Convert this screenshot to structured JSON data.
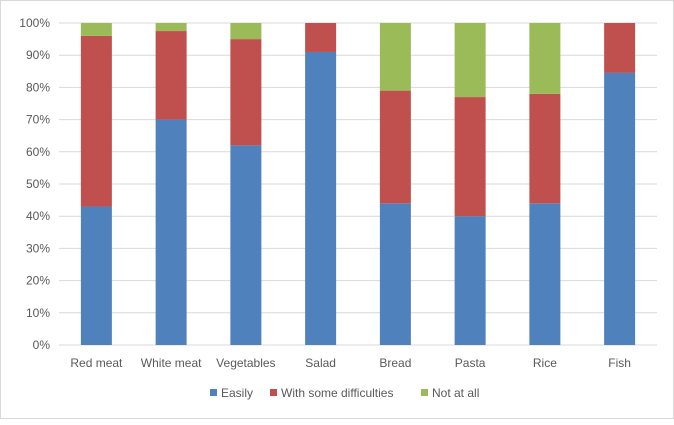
{
  "chart_data": {
    "type": "bar",
    "stacked": true,
    "percent_stacked": true,
    "categories": [
      "Red meat",
      "White meat",
      "Vegetables",
      "Salad",
      "Bread",
      "Pasta",
      "Rice",
      "Fish"
    ],
    "series": [
      {
        "name": "Easily",
        "color": "#4f81bd",
        "values": [
          43,
          70,
          62,
          91,
          44,
          40,
          44,
          84.5
        ]
      },
      {
        "name": "With some difficulties",
        "color": "#c0504d",
        "values": [
          53,
          27.5,
          33,
          9,
          35,
          37,
          34,
          15.5
        ]
      },
      {
        "name": "Not at all",
        "color": "#9bbb59",
        "values": [
          4,
          2.5,
          5,
          0,
          21,
          23,
          22,
          0
        ]
      }
    ],
    "yticks": [
      "0%",
      "10%",
      "20%",
      "30%",
      "40%",
      "50%",
      "60%",
      "70%",
      "80%",
      "90%",
      "100%"
    ],
    "ylim": [
      0,
      100
    ],
    "title": "",
    "xlabel": "",
    "ylabel": "",
    "grid": true,
    "legend_position": "bottom"
  }
}
